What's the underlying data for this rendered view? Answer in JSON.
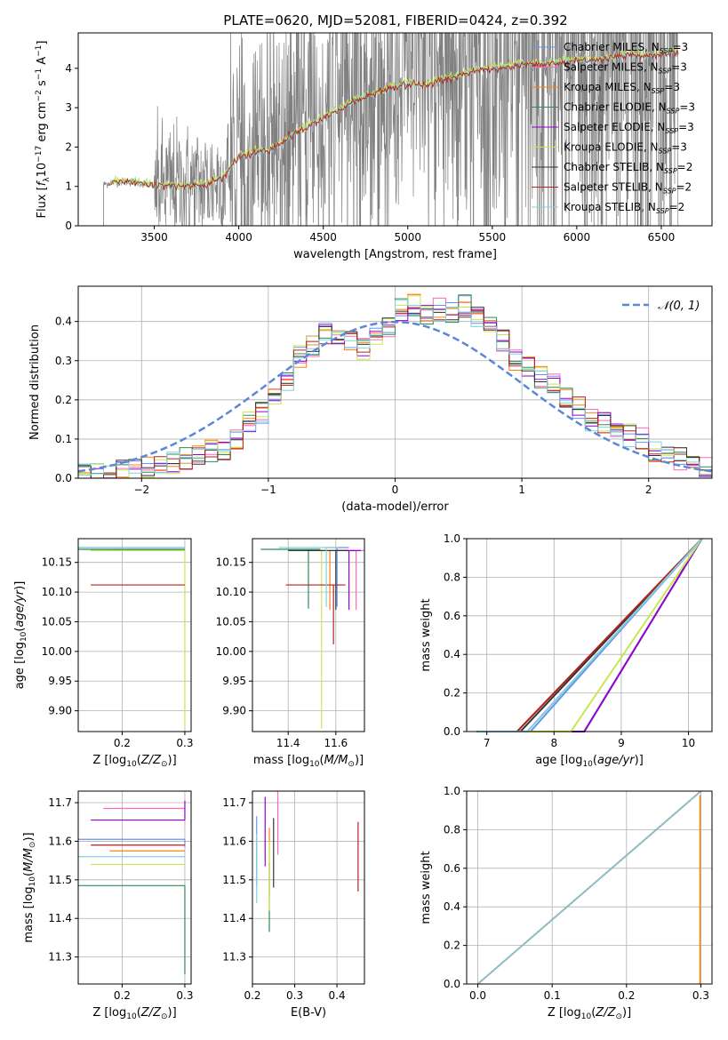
{
  "figure": {
    "title": "PLATE=0620, MJD=52081, FIBERID=0424, z=0.392"
  },
  "colors": {
    "chabrier_miles": "#6495ed",
    "salpeter_miles": "#ff69b4",
    "kroupa_miles": "#ff7f0e",
    "chabrier_elodie": "#2e8b57",
    "salpeter_elodie": "#9400d3",
    "kroupa_elodie": "#c8e650",
    "chabrier_stelib": "#333333",
    "salpeter_stelib": "#b22222",
    "kroupa_stelib": "#7fd3dd",
    "data_spectrum": "#808080",
    "gaussian": "#5b87d6"
  },
  "chart_data": [
    {
      "id": "spectrum",
      "type": "line",
      "xlabel": "wavelength [Angstrom, rest frame]",
      "ylabel": "Flux [f_λ 10^-17 erg cm^-2 s^-1 A^-1]",
      "xlim": [
        3050,
        6800
      ],
      "ylim": [
        0,
        4.9
      ],
      "xticks": [
        3500,
        4000,
        4500,
        5000,
        5500,
        6000,
        6500
      ],
      "yticks": [
        0,
        1,
        2,
        3,
        4
      ],
      "grid": false,
      "legend_position": "top-right",
      "legend": [
        {
          "key": "chabrier_miles",
          "label": "Chabrier MILES, N_SSP=3"
        },
        {
          "key": "salpeter_miles",
          "label": "Salpeter MILES, N_SSP=3"
        },
        {
          "key": "kroupa_miles",
          "label": "Kroupa MILES, N_SSP=3"
        },
        {
          "key": "chabrier_elodie",
          "label": "Chabrier ELODIE, N_SSP=3"
        },
        {
          "key": "salpeter_elodie",
          "label": "Salpeter ELODIE, N_SSP=3"
        },
        {
          "key": "kroupa_elodie",
          "label": "Kroupa ELODIE, N_SSP=3"
        },
        {
          "key": "chabrier_stelib",
          "label": "Chabrier STELIB, N_SSP=2"
        },
        {
          "key": "salpeter_stelib",
          "label": "Salpeter STELIB, N_SSP=2"
        },
        {
          "key": "kroupa_stelib",
          "label": "Kroupa STELIB, N_SSP=2"
        }
      ],
      "model_continuum": {
        "x": [
          3200,
          3250,
          3300,
          3400,
          3500,
          3600,
          3700,
          3800,
          3900,
          3950,
          4000,
          4100,
          4200,
          4300,
          4400,
          4500,
          4600,
          4700,
          4800,
          4900,
          5000,
          5100,
          5200,
          5300,
          5400,
          5500,
          5600,
          5700,
          5800,
          5900,
          6000,
          6100,
          6200,
          6300,
          6400,
          6500,
          6600
        ],
        "y": [
          1.05,
          1.1,
          1.12,
          1.1,
          1.02,
          1.02,
          1.0,
          1.05,
          1.2,
          1.45,
          1.75,
          1.85,
          1.95,
          2.25,
          2.5,
          2.75,
          2.95,
          3.2,
          3.35,
          3.5,
          3.6,
          3.55,
          3.7,
          3.8,
          3.95,
          4.0,
          4.05,
          4.1,
          4.1,
          4.15,
          4.2,
          4.2,
          4.25,
          4.35,
          4.3,
          4.35,
          4.4
        ]
      },
      "data_spectrum_range": [
        3200,
        6600
      ],
      "data_noise_start": 3500
    },
    {
      "id": "residuals",
      "type": "histogram",
      "xlabel": "(data-model)/error",
      "ylabel": "Normed distribution",
      "xlim": [
        -2.5,
        2.5
      ],
      "ylim": [
        0,
        0.49
      ],
      "xticks": [
        -2,
        -1,
        0,
        1,
        2
      ],
      "yticks": [
        0.0,
        0.1,
        0.2,
        0.3,
        0.4
      ],
      "grid": true,
      "legend_position": "top-right",
      "gaussian_label": "𝒩(0, 1)",
      "bin_edges": [
        -2.5,
        -2.4,
        -2.3,
        -2.2,
        -2.1,
        -2.0,
        -1.9,
        -1.8,
        -1.7,
        -1.6,
        -1.5,
        -1.4,
        -1.3,
        -1.2,
        -1.1,
        -1.0,
        -0.9,
        -0.8,
        -0.7,
        -0.6,
        -0.5,
        -0.4,
        -0.3,
        -0.2,
        -0.1,
        0.0,
        0.1,
        0.2,
        0.3,
        0.4,
        0.5,
        0.6,
        0.7,
        0.8,
        0.9,
        1.0,
        1.1,
        1.2,
        1.3,
        1.4,
        1.5,
        1.6,
        1.7,
        1.8,
        1.9,
        2.0,
        2.1,
        2.2,
        2.3,
        2.4,
        2.5
      ],
      "base_density": [
        0.01,
        0.01,
        0.015,
        0.02,
        0.02,
        0.03,
        0.03,
        0.04,
        0.05,
        0.06,
        0.07,
        0.07,
        0.1,
        0.14,
        0.17,
        0.2,
        0.25,
        0.31,
        0.34,
        0.37,
        0.36,
        0.35,
        0.33,
        0.36,
        0.39,
        0.43,
        0.44,
        0.42,
        0.43,
        0.42,
        0.44,
        0.41,
        0.39,
        0.35,
        0.3,
        0.28,
        0.26,
        0.24,
        0.2,
        0.18,
        0.15,
        0.14,
        0.13,
        0.11,
        0.1,
        0.07,
        0.06,
        0.05,
        0.04,
        0.03
      ]
    },
    {
      "id": "age_vs_Z",
      "type": "scatter",
      "xlabel": "Z [log10(Z/Z☉)]",
      "ylabel": "age  [log10(age/yr)]",
      "xlim": [
        0.13,
        0.31
      ],
      "ylim": [
        9.865,
        10.19
      ],
      "xticks": [
        0.2,
        0.3
      ],
      "yticks": [
        9.9,
        9.95,
        10.0,
        10.05,
        10.1,
        10.15
      ],
      "grid": true
    },
    {
      "id": "age_vs_mass",
      "type": "scatter",
      "xlabel": "mass [log10(M/M☉)]",
      "ylabel": "",
      "xlim": [
        11.25,
        11.72
      ],
      "ylim": [
        9.865,
        10.19
      ],
      "xticks": [
        11.4,
        11.6
      ],
      "yticks": [
        9.9,
        9.95,
        10.0,
        10.05,
        10.1,
        10.15
      ],
      "grid": true
    },
    {
      "id": "cum_age",
      "type": "line",
      "xlabel": "age  [log10(age/yr)]",
      "ylabel": "mass weight",
      "xlim": [
        6.7,
        10.35
      ],
      "ylim": [
        0,
        1.0
      ],
      "xticks": [
        7,
        8,
        9,
        10
      ],
      "yticks": [
        0.0,
        0.2,
        0.4,
        0.6,
        0.8,
        1.0
      ],
      "grid": true
    },
    {
      "id": "mass_vs_Z",
      "type": "scatter",
      "xlabel": "Z [log10(Z/Z☉)]",
      "ylabel": "mass [log10(M/M☉)]",
      "xlim": [
        0.13,
        0.31
      ],
      "ylim": [
        11.23,
        11.73
      ],
      "xticks": [
        0.2,
        0.3
      ],
      "yticks": [
        11.3,
        11.4,
        11.5,
        11.6,
        11.7
      ],
      "grid": true
    },
    {
      "id": "mass_vs_ebv",
      "type": "scatter",
      "xlabel": "E(B-V)",
      "ylabel": "",
      "xlim": [
        0.2,
        0.465
      ],
      "ylim": [
        11.23,
        11.73
      ],
      "xticks": [
        0.2,
        0.3,
        0.4
      ],
      "yticks": [
        11.3,
        11.4,
        11.5,
        11.6,
        11.7
      ],
      "grid": true
    },
    {
      "id": "cum_Z",
      "type": "line",
      "xlabel": "Z [log10(Z/Z☉)]",
      "ylabel": "mass weight",
      "xlim": [
        -0.015,
        0.315
      ],
      "ylim": [
        0,
        1.0
      ],
      "xticks": [
        0.0,
        0.1,
        0.2,
        0.3
      ],
      "yticks": [
        0.0,
        0.2,
        0.4,
        0.6,
        0.8,
        1.0
      ],
      "grid": true
    }
  ],
  "models": [
    {
      "key": "chabrier_miles",
      "Z": 0.3,
      "Z_err": 0.17,
      "age": 10.175,
      "age_err": 0.0,
      "mass": 11.605,
      "mass_err": [
        0.02,
        0.0
      ],
      "ebv": 0.21,
      "age50": 7.65
    },
    {
      "key": "salpeter_miles",
      "Z": 0.3,
      "Z_err": 0.13,
      "age": 10.17,
      "age_err": 0.0,
      "mass": 11.685,
      "mass_err": [
        0.0,
        0.0
      ],
      "ebv": 0.26,
      "age50": 7.6
    },
    {
      "key": "kroupa_miles",
      "Z": 0.3,
      "Z_err": 0.12,
      "age": 10.17,
      "age_err": 0.0,
      "mass": 11.575,
      "mass_err": [
        0.0,
        0.0
      ],
      "ebv": 0.24,
      "age50": 7.45
    },
    {
      "key": "chabrier_elodie",
      "Z": 0.3,
      "Z_err": 0.22,
      "age": 10.172,
      "age_err": 0.0,
      "mass": 11.485,
      "mass_err": [
        0.23,
        0.0
      ],
      "ebv": 0.24,
      "age50": 8.45
    },
    {
      "key": "salpeter_elodie",
      "Z": 0.3,
      "Z_err": 0.15,
      "age": 10.17,
      "age_err": 0.0,
      "mass": 11.655,
      "mass_err": [
        0.0,
        0.05
      ],
      "ebv": 0.23,
      "age50": 8.45
    },
    {
      "key": "kroupa_elodie",
      "Z": 0.3,
      "Z_err": 0.15,
      "age": 10.17,
      "age_err": 0.3,
      "mass": 11.54,
      "mass_err": [
        0.0,
        0.0
      ],
      "ebv": 0.24,
      "age50": 8.25
    },
    {
      "key": "chabrier_stelib",
      "Z": 0.3,
      "Z_err": 0.0,
      "age": 10.17,
      "age_err": 0.0,
      "mass": 11.6,
      "mass_err": [
        0.0,
        0.0
      ],
      "ebv": 0.25,
      "age50": 7.5
    },
    {
      "key": "salpeter_stelib",
      "Z": 0.3,
      "Z_err": 0.15,
      "age": 10.112,
      "age_err": 0.0,
      "mass": 11.59,
      "mass_err": [
        0.0,
        0.0
      ],
      "ebv": 0.45,
      "age50": 7.45
    },
    {
      "key": "kroupa_stelib",
      "Z": 0.3,
      "Z_err": 0.2,
      "age": 10.175,
      "age_err": 0.0,
      "mass": 11.56,
      "mass_err": [
        0.0,
        0.0
      ],
      "ebv": 0.21,
      "age50": 7.6
    }
  ]
}
